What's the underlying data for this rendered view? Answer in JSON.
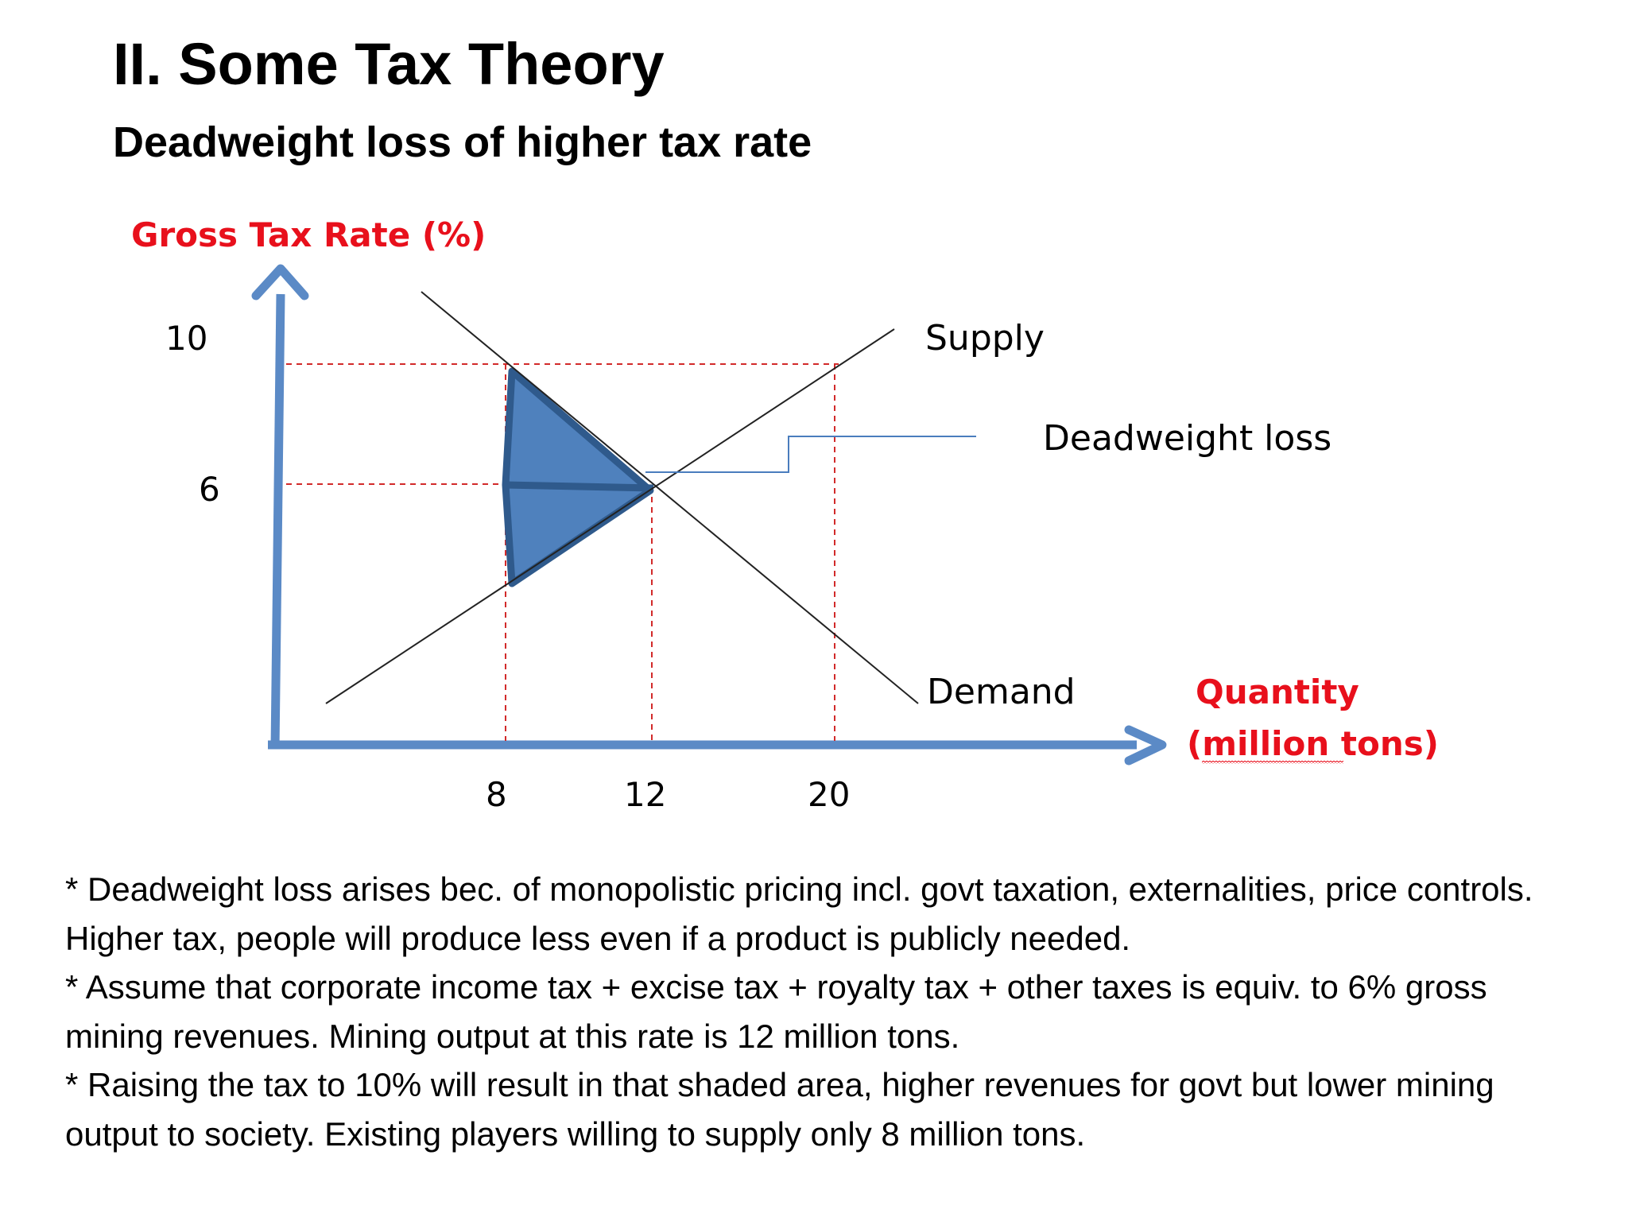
{
  "slide": {
    "title": "II. Some Tax Theory",
    "subtitle": "Deadweight loss of higher tax rate"
  },
  "colors": {
    "axis": "#5b8ac6",
    "axis_label": "#e8101c",
    "guide_line": "#d22a2a",
    "curve": "#222222",
    "dwl_fill": "#4f81bd",
    "dwl_stroke": "#2f5a8c",
    "callout": "#4a7dbd"
  },
  "chart_data": {
    "type": "line",
    "ylabel": "Gross Tax Rate (%)",
    "xlabel_lines": [
      "Quantity",
      "(million tons)"
    ],
    "x_ticks": [
      "8",
      "12",
      "20"
    ],
    "y_ticks": [
      "10",
      "6"
    ],
    "series": [
      {
        "name": "Supply"
      },
      {
        "name": "Demand"
      }
    ],
    "annotation": "Deadweight loss",
    "points": {
      "equilibrium": {
        "x": 12,
        "y": 6
      },
      "demand_at_10pct": {
        "x": 8,
        "y": 10
      },
      "supply_at_10pct": {
        "x": 20,
        "y": 10
      }
    },
    "shaded_region": "deadweight loss triangle"
  },
  "bullets": [
    "* Deadweight loss arises bec. of monopolistic pricing incl. govt taxation, externalities, price controls. Higher tax, people will produce less even if a product is publicly needed.",
    "* Assume that corporate income tax + excise tax + royalty tax + other taxes is equiv. to 6% gross mining revenues. Mining output at this rate is 12 million tons.",
    "* Raising the tax to 10% will result in that shaded area, higher revenues for govt but lower mining output to society. Existing players willing to supply only 8 million tons."
  ]
}
